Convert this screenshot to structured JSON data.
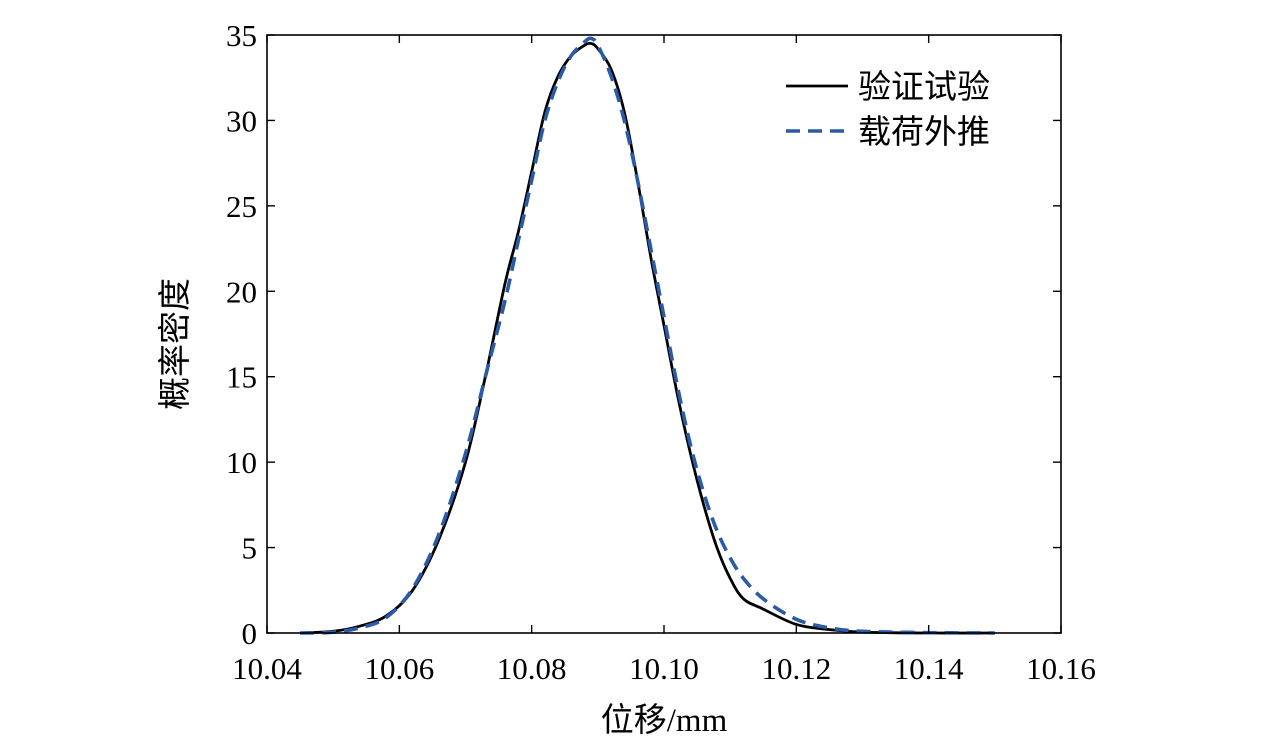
{
  "chart_data": {
    "type": "line",
    "title": "",
    "xlabel": "位移/mm",
    "ylabel": "概率密度",
    "xlim": [
      10.04,
      10.16
    ],
    "ylim": [
      0,
      35
    ],
    "xticks": [
      10.04,
      10.06,
      10.08,
      10.1,
      10.12,
      10.14,
      10.16
    ],
    "xtick_labels": [
      "10.04",
      "10.06",
      "10.08",
      "10.10",
      "10.12",
      "10.14",
      "10.16"
    ],
    "yticks": [
      0,
      5,
      10,
      15,
      20,
      25,
      30,
      35
    ],
    "ytick_labels": [
      "0",
      "5",
      "10",
      "15",
      "20",
      "25",
      "30",
      "35"
    ],
    "grid": false,
    "legend": {
      "position": "top-right"
    },
    "series": [
      {
        "name": "验证试验",
        "color": "#000000",
        "style": "solid",
        "x": [
          10.045,
          10.05,
          10.054,
          10.058,
          10.062,
          10.066,
          10.07,
          10.073,
          10.076,
          10.078,
          10.08,
          10.082,
          10.084,
          10.086,
          10.088,
          10.089,
          10.09,
          10.092,
          10.094,
          10.096,
          10.098,
          10.1,
          10.102,
          10.104,
          10.106,
          10.108,
          10.11,
          10.112,
          10.115,
          10.12,
          10.125,
          10.13,
          10.14,
          10.15
        ],
        "y": [
          0.0,
          0.1,
          0.4,
          1.0,
          2.5,
          5.5,
          10.0,
          15.0,
          20.5,
          23.5,
          27.0,
          30.5,
          32.6,
          33.8,
          34.4,
          34.5,
          34.2,
          33.0,
          30.5,
          26.5,
          22.0,
          18.0,
          14.0,
          10.5,
          7.5,
          5.0,
          3.2,
          2.0,
          1.4,
          0.5,
          0.2,
          0.05,
          0.0,
          0.0
        ]
      },
      {
        "name": "载荷外推",
        "color": "#2b5aa6",
        "style": "dashed",
        "x": [
          10.045,
          10.05,
          10.054,
          10.058,
          10.062,
          10.066,
          10.07,
          10.073,
          10.076,
          10.078,
          10.08,
          10.082,
          10.084,
          10.086,
          10.088,
          10.089,
          10.09,
          10.092,
          10.094,
          10.096,
          10.098,
          10.1,
          10.102,
          10.104,
          10.106,
          10.108,
          10.11,
          10.112,
          10.115,
          10.12,
          10.125,
          10.13,
          10.14,
          10.15
        ],
        "y": [
          0.0,
          0.05,
          0.3,
          0.9,
          2.6,
          5.8,
          10.5,
          15.0,
          19.5,
          23.0,
          26.5,
          30.0,
          32.3,
          33.8,
          34.6,
          34.8,
          34.4,
          32.6,
          30.0,
          26.5,
          22.5,
          18.5,
          14.5,
          11.0,
          8.2,
          6.0,
          4.4,
          3.2,
          2.0,
          0.8,
          0.3,
          0.1,
          0.02,
          0.0
        ]
      }
    ]
  }
}
